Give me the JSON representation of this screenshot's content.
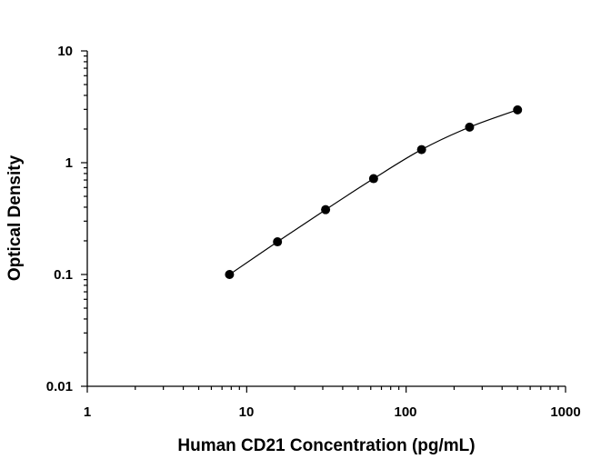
{
  "chart_data": {
    "type": "scatter",
    "title": "",
    "xlabel": "Human CD21 Concentration (pg/mL)",
    "ylabel": "Optical Density",
    "x_scale": "log",
    "y_scale": "log",
    "xlim": [
      1,
      1000
    ],
    "ylim": [
      0.01,
      10
    ],
    "x_tick_labels": [
      "1",
      "10",
      "100",
      "1000"
    ],
    "y_tick_labels": [
      "10",
      "1",
      "0.1",
      "0.01"
    ],
    "grid": false,
    "legend": "none",
    "fit_curve": true,
    "marker_color": "#000000",
    "series": [
      {
        "x": [
          7.8,
          15.6,
          31.25,
          62.5,
          125,
          250,
          500
        ],
        "y": [
          0.1,
          0.196,
          0.38,
          0.72,
          1.31,
          2.08,
          2.97
        ]
      }
    ]
  }
}
